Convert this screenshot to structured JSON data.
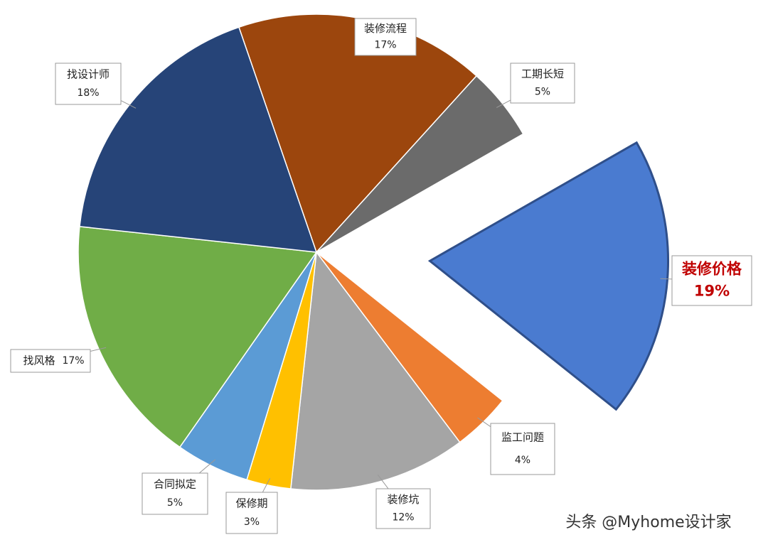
{
  "chart_data": {
    "type": "pie",
    "categories": [
      "装修流程",
      "工期长短",
      "装修价格",
      "监工问题",
      "装修坑",
      "保修期",
      "合同拟定",
      "找风格",
      "找设计师"
    ],
    "values": [
      17,
      5,
      19,
      4,
      12,
      3,
      5,
      17,
      18
    ],
    "value_labels": [
      "17%",
      "5%",
      "19%",
      "4%",
      "12%",
      "3%",
      "5%",
      "17%",
      "18%"
    ],
    "colors": [
      "#9c460d",
      "#6b6b6b",
      "#4a7bd0",
      "#ed7d31",
      "#a5a5a5",
      "#ffc000",
      "#5b9bd5",
      "#70ad47",
      "#264478"
    ]
  },
  "watermark": "头条 @Myhome设计家"
}
